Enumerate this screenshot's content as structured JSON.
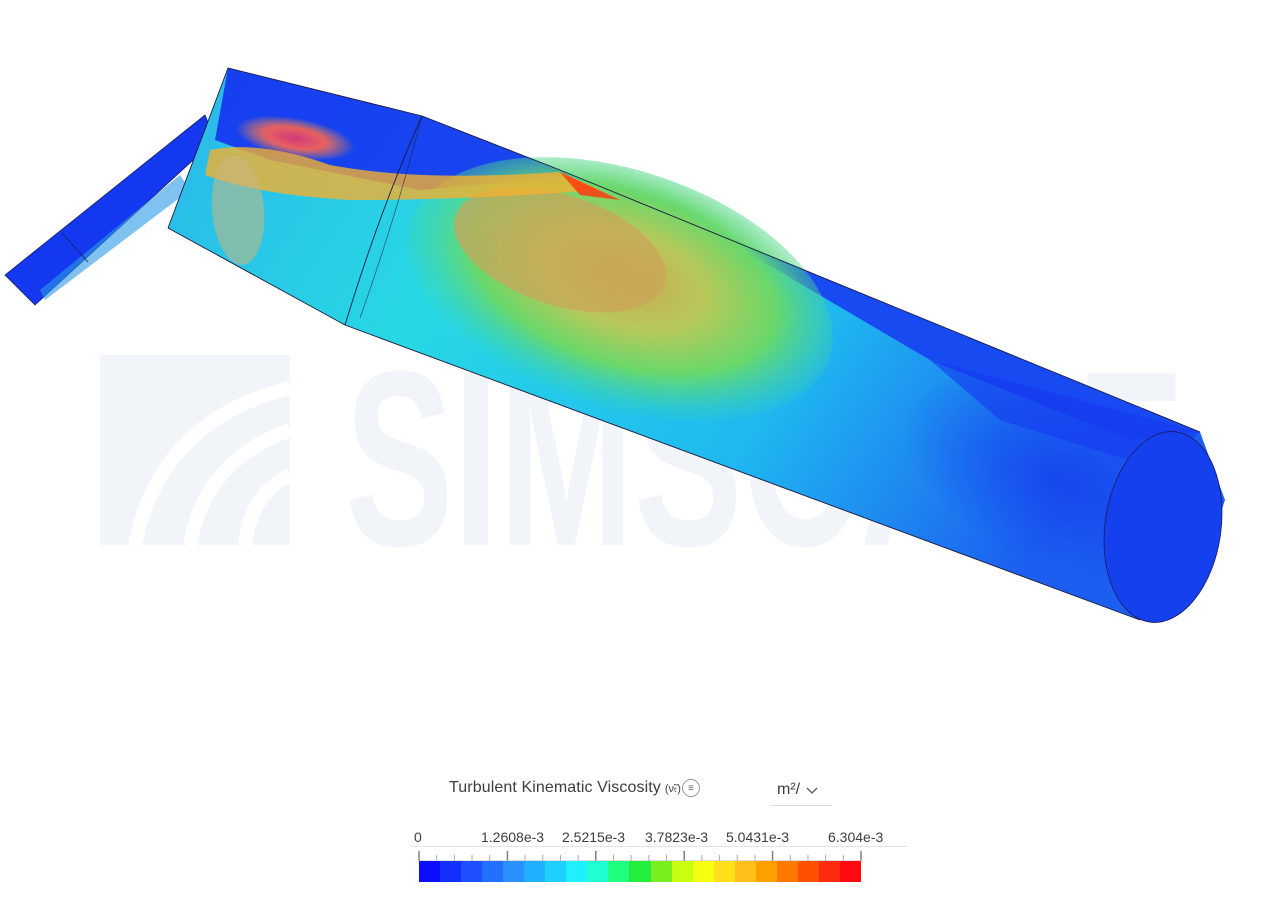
{
  "watermark": "SIMSCALE",
  "legend": {
    "title": "Turbulent Kinematic Viscosity",
    "symbol": "(ν̃ₜ)",
    "info_icon": "menu-icon",
    "unit": "m²/",
    "tick_labels": [
      "0",
      "1.2608e-3",
      "2.5215e-3",
      "3.7823e-3",
      "5.0431e-3",
      "6.304e-3"
    ],
    "range": [
      0,
      0.006304
    ],
    "colors": [
      "#0a10ff",
      "#1430ff",
      "#1f50ff",
      "#2370ff",
      "#2a90ff",
      "#1fb0ff",
      "#1fcfff",
      "#1fefff",
      "#1fffd0",
      "#1fff80",
      "#23ee3c",
      "#79ef1f",
      "#c8ff10",
      "#f5ff10",
      "#ffe01a",
      "#ffc01a",
      "#ffa000",
      "#ff7800",
      "#ff5000",
      "#ff2a10",
      "#ff0a10"
    ]
  }
}
